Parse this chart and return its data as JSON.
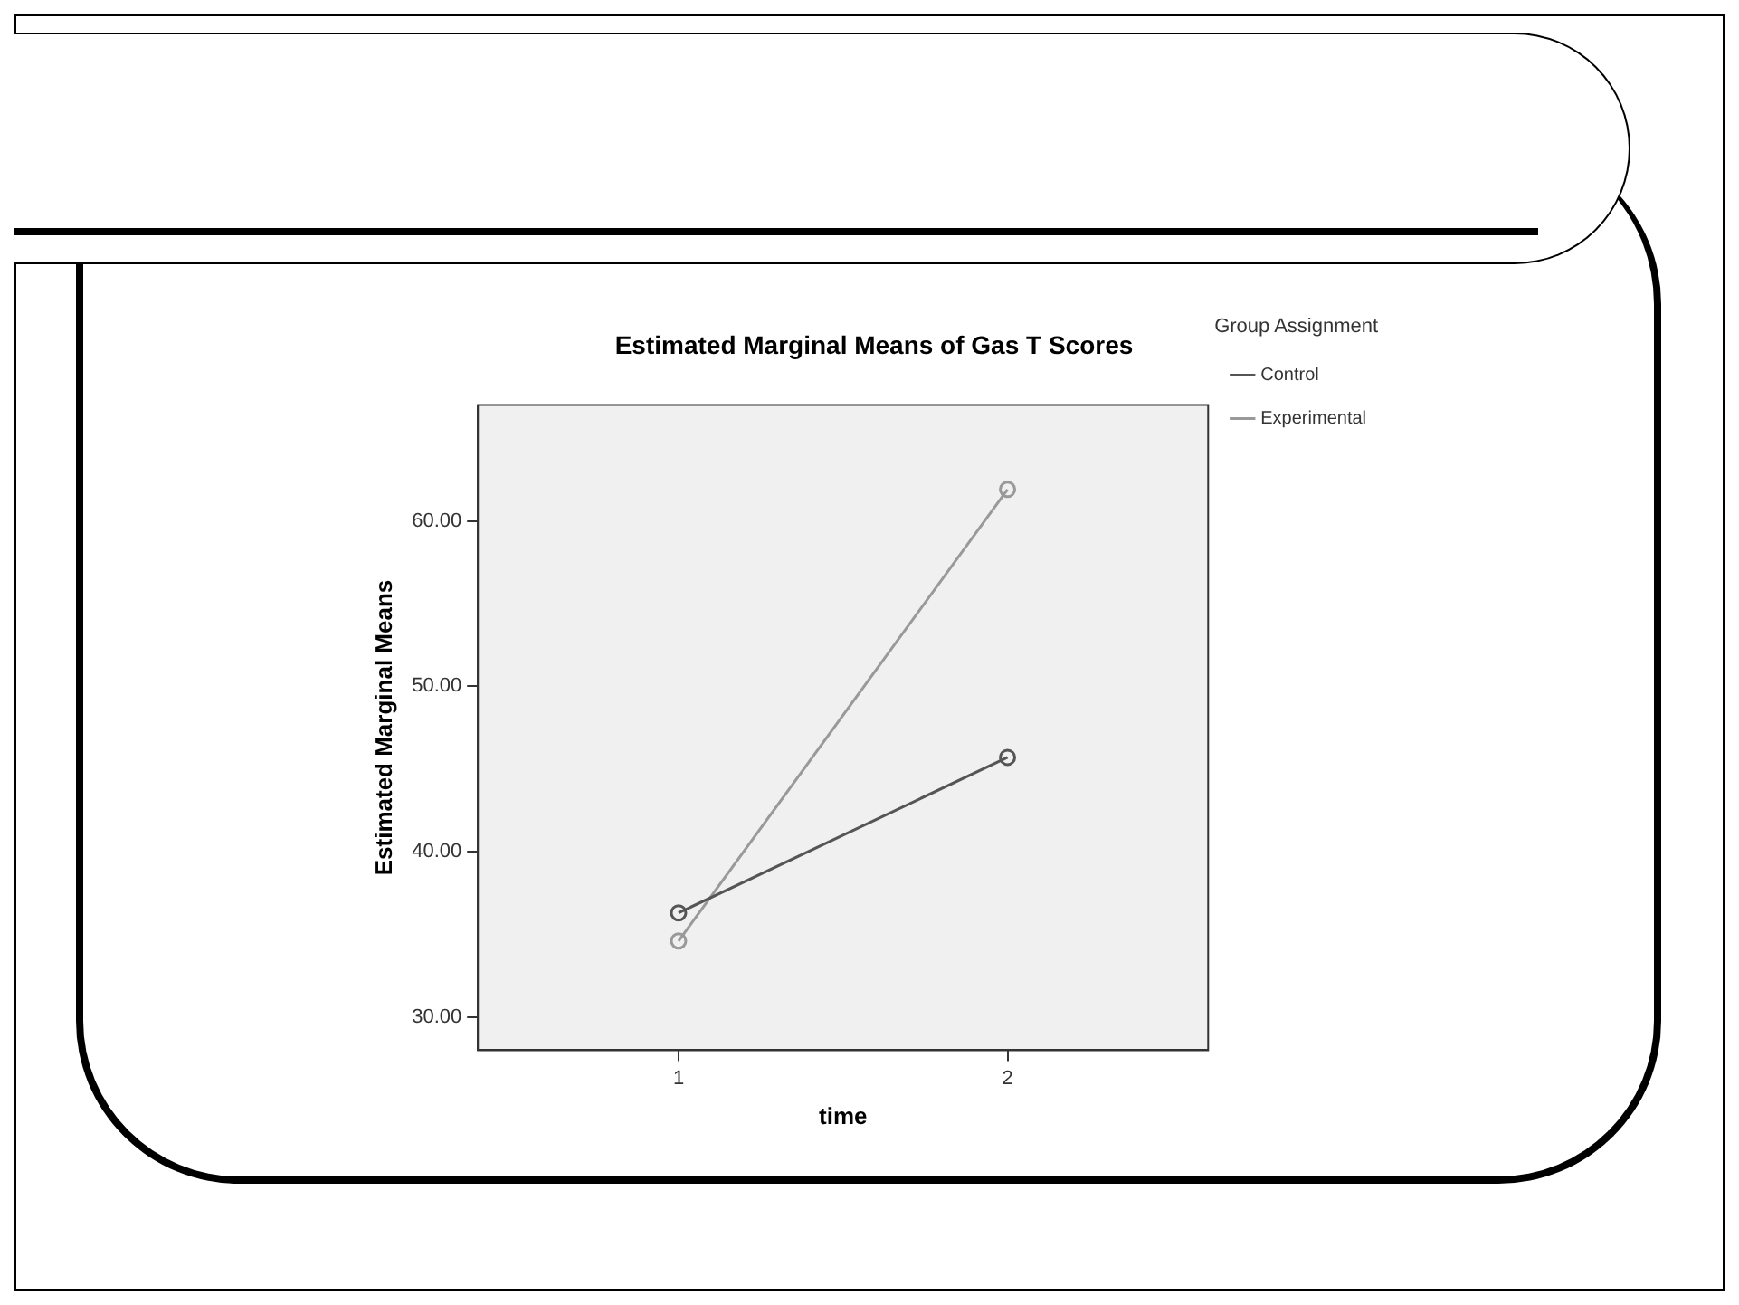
{
  "chart_data": {
    "type": "line",
    "title": "Estimated Marginal Means of Gas T Scores",
    "xlabel": "time",
    "ylabel": "Estimated Marginal Means",
    "legend_title": "Group Assignment",
    "x": [
      1,
      2
    ],
    "series": [
      {
        "name": "Control",
        "color": "#555555",
        "values": [
          36.3,
          45.7
        ]
      },
      {
        "name": "Experimental",
        "color": "#999999",
        "values": [
          34.6,
          61.9
        ]
      }
    ],
    "xlim": [
      0.39,
      2.61
    ],
    "xticks": [
      1,
      2
    ],
    "ylim": [
      28,
      67
    ],
    "yticks": [
      {
        "value": 30,
        "label": "30.00"
      },
      {
        "value": 40,
        "label": "40.00"
      },
      {
        "value": 50,
        "label": "50.00"
      },
      {
        "value": 60,
        "label": "60.00"
      }
    ],
    "grid": false,
    "legend": "top right",
    "marker": "circle",
    "line_style": "solid"
  }
}
